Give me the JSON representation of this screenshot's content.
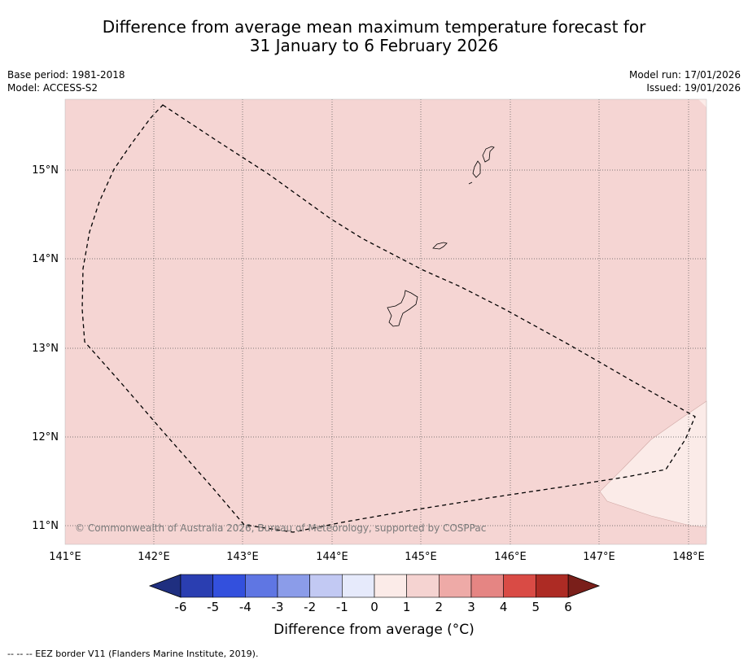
{
  "title_line1": "Difference from average mean maximum temperature forecast for",
  "title_line2": "31 January to 6 February 2026",
  "base_period": "Base period: 1981-2018",
  "model": "Model: ACCESS-S2",
  "model_run": "Model run: 17/01/2026",
  "issued": "Issued: 19/01/2026",
  "copyright": "© Commonwealth of Australia 2026, Bureau of Meteorology, supported by COSPPac",
  "longitude_labels": [
    "141°E",
    "142°E",
    "143°E",
    "144°E",
    "145°E",
    "146°E",
    "147°E",
    "148°E"
  ],
  "latitude_labels": [
    "15°N",
    "14°N",
    "13°N",
    "12°N",
    "11°N"
  ],
  "colorbar": {
    "title": "Difference from average (°C)",
    "ticks": [
      "-6",
      "-5",
      "-4",
      "-3",
      "-2",
      "-1",
      "0",
      "1",
      "2",
      "3",
      "4",
      "5",
      "6"
    ],
    "colors": [
      "#2a3eb1",
      "#3350dd",
      "#5f76e3",
      "#8b9ce9",
      "#c2c9f3",
      "#e6eafb",
      "#fbebe8",
      "#f5d3d1",
      "#eeaaa7",
      "#e58583",
      "#d94b45",
      "#ad2b24"
    ],
    "under_color": "#1f2f80",
    "over_color": "#7a1f1a"
  },
  "field_colors": {
    "main": "#f5d5d3",
    "lower": "#fbebe8"
  },
  "footer": "--  --  -- EEZ border V11 (Flanders Marine Institute, 2019)."
}
